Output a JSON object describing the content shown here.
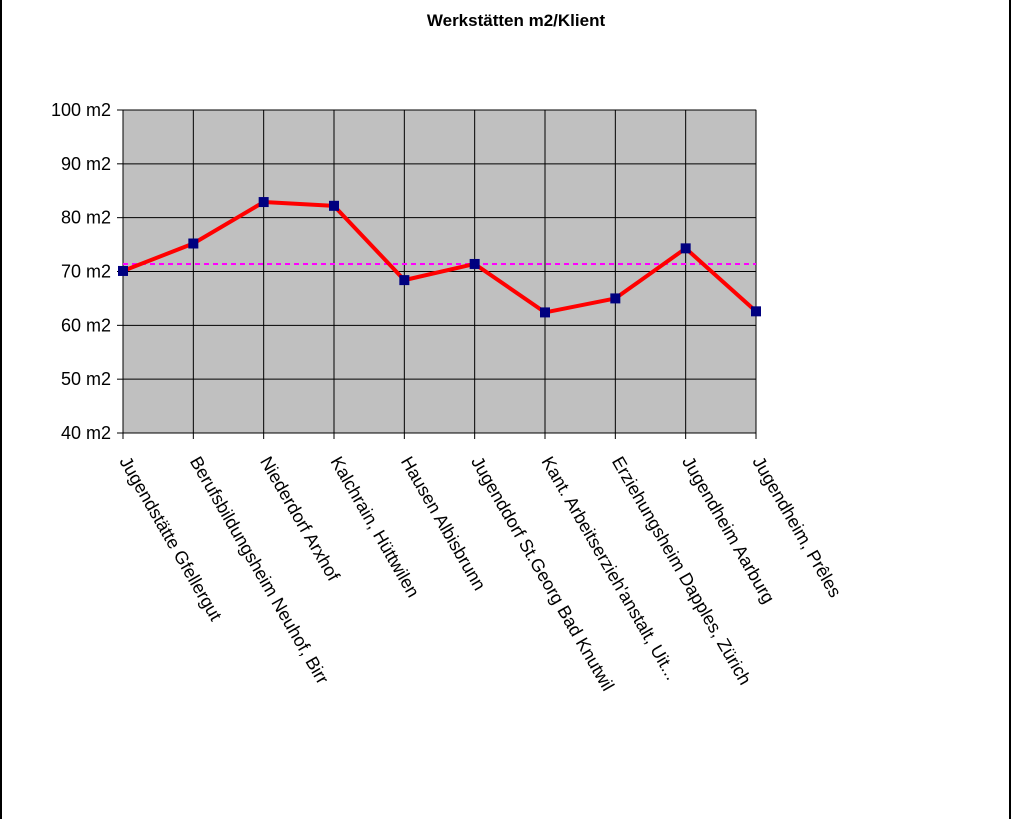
{
  "chart_data": {
    "type": "line",
    "title": "Werkstätten m2/Klient",
    "xlabel": "",
    "ylabel": "",
    "ylim": [
      40,
      100
    ],
    "yticks": [
      40,
      50,
      60,
      70,
      80,
      90,
      100
    ],
    "ytick_labels": [
      "40 m2",
      "50 m2",
      "60 m2",
      "70 m2",
      "80 m2",
      "90 m2",
      "100 m2"
    ],
    "grid": true,
    "legend": "none",
    "categories": [
      "Jugendstätte Gfellergut",
      "Berufsbildungsheim Neuhof, Birr",
      "Niederdorf Arxhof",
      "Kalchrain, Hüttwilen",
      "Hausen Albisbrunn",
      "Jugenddorf St.Georg Bad Knutwil",
      "Kant. Arbeitserzieh'anstalt, Uit...",
      "Erziehungsheim Dapples, Zürich",
      "Jugendheim Aarburg",
      "Jugendheim, Prêles"
    ],
    "series": [
      {
        "values": [
          70.1,
          75.2,
          82.9,
          82.2,
          68.4,
          71.4,
          62.4,
          65.0,
          74.3,
          62.6
        ],
        "color": "#ff0000",
        "marker_color": "#000080"
      }
    ],
    "reference_line": {
      "value": 71.4,
      "color": "#ff00ff",
      "style": "dashed"
    },
    "plot_background": "#c0c0c0"
  }
}
